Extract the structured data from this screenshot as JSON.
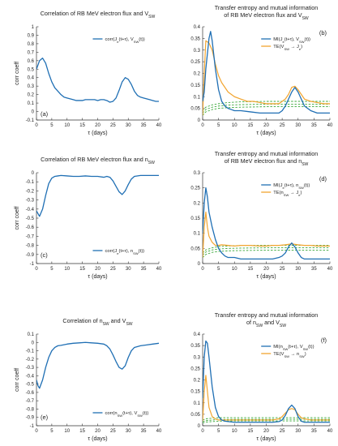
{
  "figure": {
    "x_axis_label": "τ (days)",
    "y_axis_label": "corr coeff",
    "x_ticks": [
      0,
      5,
      10,
      15,
      20,
      25,
      30,
      35,
      40
    ]
  },
  "colors": {
    "mi": "#1f6fb4",
    "te": "#f2a530",
    "threshold": "#3aa83a",
    "axis": "#333333"
  },
  "chart_data": [
    {
      "id": "a",
      "tag": "(a)",
      "type": "line",
      "title": "Correlation of RB MeV electron flux and V_SW",
      "xlabel": "τ (days)",
      "ylabel": "corr coeff",
      "xlim": [
        0,
        40
      ],
      "ylim": [
        -0.1,
        1
      ],
      "yticks": [
        -0.1,
        0,
        0.1,
        0.2,
        0.3,
        0.4,
        0.5,
        0.6,
        0.7,
        0.8,
        0.9,
        1
      ],
      "legend": "top-right",
      "series": [
        {
          "name": "corr(J_e(t+τ), V_SW(t))",
          "role": "corr",
          "x": [
            0,
            1,
            2,
            3,
            4,
            5,
            6,
            7,
            8,
            9,
            10,
            11,
            12,
            13,
            14,
            15,
            16,
            17,
            18,
            19,
            20,
            21,
            22,
            23,
            24,
            25,
            26,
            27,
            28,
            29,
            30,
            31,
            32,
            33,
            34,
            35,
            36,
            37,
            38,
            39,
            40
          ],
          "y": [
            0.5,
            0.6,
            0.63,
            0.57,
            0.45,
            0.35,
            0.28,
            0.24,
            0.2,
            0.17,
            0.16,
            0.15,
            0.14,
            0.13,
            0.13,
            0.13,
            0.14,
            0.14,
            0.14,
            0.14,
            0.13,
            0.14,
            0.14,
            0.13,
            0.11,
            0.12,
            0.16,
            0.25,
            0.35,
            0.4,
            0.38,
            0.32,
            0.24,
            0.19,
            0.17,
            0.16,
            0.15,
            0.14,
            0.13,
            0.12,
            0.12
          ]
        }
      ]
    },
    {
      "id": "b",
      "tag": "(b)",
      "type": "line",
      "title": "Transfer entropy and mutual information of RB MeV electron flux and V_SW",
      "xlabel": "τ (days)",
      "ylabel": "",
      "xlim": [
        0,
        40
      ],
      "ylim": [
        0,
        0.4
      ],
      "yticks": [
        0,
        0.05,
        0.1,
        0.15,
        0.2,
        0.25,
        0.3,
        0.35,
        0.4
      ],
      "legend": "top-right",
      "series": [
        {
          "name": "MI(J_e(t+τ), V_SW(t))",
          "role": "mi",
          "x": [
            0,
            0.5,
            1,
            2,
            2.5,
            3,
            4,
            5,
            6,
            7,
            8,
            9,
            10,
            12,
            15,
            18,
            20,
            22,
            24,
            25,
            26,
            27,
            28,
            29,
            30,
            31,
            32,
            34,
            36,
            38,
            40
          ],
          "y": [
            0.08,
            0.12,
            0.22,
            0.35,
            0.38,
            0.34,
            0.22,
            0.13,
            0.08,
            0.06,
            0.05,
            0.045,
            0.04,
            0.04,
            0.035,
            0.03,
            0.03,
            0.03,
            0.03,
            0.04,
            0.06,
            0.09,
            0.12,
            0.14,
            0.12,
            0.09,
            0.06,
            0.04,
            0.03,
            0.03,
            0.03
          ]
        },
        {
          "name": "TE(V_SW → J_e)",
          "role": "te",
          "x": [
            0,
            0.5,
            1,
            2,
            3,
            4,
            5,
            6,
            7,
            8,
            10,
            12,
            14,
            16,
            18,
            20,
            22,
            24,
            25,
            26,
            27,
            28,
            29,
            30,
            31,
            32,
            34,
            36,
            38,
            40
          ],
          "y": [
            0.02,
            0.2,
            0.34,
            0.33,
            0.3,
            0.24,
            0.19,
            0.16,
            0.14,
            0.12,
            0.1,
            0.09,
            0.08,
            0.08,
            0.075,
            0.07,
            0.07,
            0.07,
            0.08,
            0.09,
            0.11,
            0.14,
            0.145,
            0.13,
            0.11,
            0.09,
            0.08,
            0.075,
            0.07,
            0.07
          ]
        },
        {
          "name": "",
          "role": "threshold",
          "x": [
            0,
            1,
            3,
            5,
            8,
            12,
            20,
            30,
            40
          ],
          "y": [
            0.04,
            0.055,
            0.065,
            0.07,
            0.075,
            0.078,
            0.08,
            0.08,
            0.08
          ]
        },
        {
          "name": "",
          "role": "threshold",
          "x": [
            0,
            1,
            3,
            5,
            8,
            12,
            20,
            30,
            40
          ],
          "y": [
            0.03,
            0.045,
            0.055,
            0.06,
            0.064,
            0.066,
            0.068,
            0.068,
            0.068
          ]
        },
        {
          "name": "",
          "role": "threshold",
          "x": [
            0,
            1,
            3,
            5,
            8,
            12,
            20,
            30,
            40
          ],
          "y": [
            0.02,
            0.035,
            0.045,
            0.05,
            0.053,
            0.055,
            0.057,
            0.057,
            0.057
          ]
        }
      ]
    },
    {
      "id": "c",
      "tag": "(c)",
      "type": "line",
      "title": "Correlation of RB MeV electron flux and n_SW",
      "xlabel": "τ (days)",
      "ylabel": "corr coeff",
      "xlim": [
        0,
        40
      ],
      "ylim": [
        -1,
        0
      ],
      "yticks": [
        -1,
        -0.9,
        -0.8,
        -0.7,
        -0.6,
        -0.5,
        -0.4,
        -0.3,
        -0.2,
        -0.1,
        0
      ],
      "legend": "bottom-right",
      "series": [
        {
          "name": "corr(J_e(t+τ), n_SW(t))",
          "role": "corr",
          "x": [
            0,
            1,
            2,
            3,
            4,
            5,
            6,
            7,
            8,
            10,
            12,
            14,
            16,
            18,
            20,
            22,
            23,
            24,
            25,
            26,
            27,
            28,
            29,
            30,
            31,
            32,
            34,
            36,
            38,
            40
          ],
          "y": [
            -0.42,
            -0.48,
            -0.4,
            -0.25,
            -0.12,
            -0.06,
            -0.04,
            -0.035,
            -0.03,
            -0.035,
            -0.04,
            -0.04,
            -0.035,
            -0.04,
            -0.04,
            -0.05,
            -0.04,
            -0.05,
            -0.09,
            -0.15,
            -0.21,
            -0.24,
            -0.2,
            -0.13,
            -0.07,
            -0.04,
            -0.03,
            -0.03,
            -0.03,
            -0.03
          ]
        }
      ]
    },
    {
      "id": "d",
      "tag": "(d)",
      "type": "line",
      "title": "Transfer entropy and mutual information of RB MeV electron flux and n_SW",
      "xlabel": "τ (days)",
      "ylabel": "",
      "xlim": [
        0,
        40
      ],
      "ylim": [
        0,
        0.3
      ],
      "yticks": [
        0,
        0.05,
        0.1,
        0.15,
        0.2,
        0.25,
        0.3
      ],
      "legend": "top-right",
      "series": [
        {
          "name": "MI(J_e(t+τ), n_SW(t))",
          "role": "mi",
          "x": [
            0,
            0.5,
            1,
            1.5,
            2,
            3,
            4,
            5,
            6,
            7,
            8,
            10,
            12,
            15,
            18,
            20,
            22,
            24,
            25,
            26,
            27,
            28,
            29,
            30,
            31,
            32,
            34,
            36,
            38,
            40
          ],
          "y": [
            0.1,
            0.2,
            0.25,
            0.22,
            0.17,
            0.12,
            0.08,
            0.05,
            0.035,
            0.025,
            0.02,
            0.02,
            0.015,
            0.015,
            0.015,
            0.015,
            0.015,
            0.02,
            0.025,
            0.035,
            0.055,
            0.068,
            0.055,
            0.035,
            0.02,
            0.015,
            0.015,
            0.015,
            0.015,
            0.015
          ]
        },
        {
          "name": "TE(n_SW → J_e)",
          "role": "te",
          "x": [
            0,
            0.5,
            1,
            1.5,
            2,
            3,
            4,
            5,
            6,
            8,
            10,
            12,
            15,
            18,
            20,
            22,
            24,
            26,
            28,
            30,
            32,
            34,
            36,
            38,
            40
          ],
          "y": [
            0.02,
            0.12,
            0.17,
            0.12,
            0.09,
            0.07,
            0.06,
            0.06,
            0.062,
            0.06,
            0.058,
            0.06,
            0.06,
            0.058,
            0.058,
            0.06,
            0.06,
            0.062,
            0.065,
            0.062,
            0.06,
            0.06,
            0.058,
            0.058,
            0.058
          ]
        },
        {
          "name": "",
          "role": "threshold",
          "x": [
            0,
            1,
            3,
            5,
            8,
            12,
            20,
            30,
            40
          ],
          "y": [
            0.035,
            0.045,
            0.052,
            0.056,
            0.058,
            0.06,
            0.06,
            0.06,
            0.06
          ]
        },
        {
          "name": "",
          "role": "threshold",
          "x": [
            0,
            1,
            3,
            5,
            8,
            12,
            20,
            30,
            40
          ],
          "y": [
            0.028,
            0.038,
            0.045,
            0.048,
            0.05,
            0.051,
            0.052,
            0.052,
            0.052
          ]
        },
        {
          "name": "",
          "role": "threshold",
          "x": [
            0,
            1,
            3,
            5,
            8,
            12,
            20,
            30,
            40
          ],
          "y": [
            0.02,
            0.03,
            0.037,
            0.04,
            0.042,
            0.043,
            0.044,
            0.044,
            0.044
          ]
        }
      ]
    },
    {
      "id": "e",
      "tag": "(e)",
      "type": "line",
      "title": "Correlation of n_SW and V_SW",
      "xlabel": "τ (days)",
      "ylabel": "corr coeff",
      "xlim": [
        0,
        40
      ],
      "ylim": [
        -1,
        0.1
      ],
      "yticks": [
        -1,
        -0.9,
        -0.8,
        -0.7,
        -0.6,
        -0.5,
        -0.4,
        -0.3,
        -0.2,
        -0.1,
        0,
        0.1
      ],
      "legend": "bottom-right",
      "series": [
        {
          "name": "corr(n_SW(t+τ), V_SW(t))",
          "role": "corr",
          "x": [
            0,
            0.5,
            1,
            2,
            3,
            4,
            5,
            6,
            7,
            8,
            10,
            12,
            14,
            16,
            18,
            20,
            22,
            23,
            24,
            25,
            26,
            27,
            28,
            29,
            30,
            31,
            32,
            34,
            36,
            38,
            40
          ],
          "y": [
            -0.45,
            -0.52,
            -0.55,
            -0.45,
            -0.3,
            -0.18,
            -0.1,
            -0.06,
            -0.04,
            -0.035,
            -0.02,
            -0.01,
            -0.005,
            0,
            -0.005,
            -0.01,
            -0.02,
            -0.04,
            -0.08,
            -0.15,
            -0.23,
            -0.3,
            -0.32,
            -0.28,
            -0.18,
            -0.1,
            -0.06,
            -0.04,
            -0.03,
            -0.02,
            -0.01
          ]
        }
      ]
    },
    {
      "id": "f",
      "tag": "(f)",
      "type": "line",
      "title": "Transfer entropy and mutual information of n_SW and V_SW",
      "xlabel": "τ (days)",
      "ylabel": "",
      "xlim": [
        0,
        40
      ],
      "ylim": [
        0,
        0.4
      ],
      "yticks": [
        0,
        0.05,
        0.1,
        0.15,
        0.2,
        0.25,
        0.3,
        0.35,
        0.4
      ],
      "legend": "top-right",
      "series": [
        {
          "name": "MI(n_SW(t+τ), V_SW(t))",
          "role": "mi",
          "x": [
            0,
            0.5,
            1,
            1.5,
            2,
            3,
            4,
            5,
            6,
            7,
            8,
            10,
            12,
            15,
            18,
            20,
            22,
            24,
            25,
            26,
            27,
            28,
            29,
            30,
            31,
            32,
            34,
            36,
            38,
            40
          ],
          "y": [
            0.12,
            0.3,
            0.37,
            0.36,
            0.3,
            0.17,
            0.08,
            0.04,
            0.025,
            0.02,
            0.018,
            0.015,
            0.015,
            0.015,
            0.015,
            0.015,
            0.015,
            0.018,
            0.025,
            0.045,
            0.075,
            0.09,
            0.075,
            0.04,
            0.02,
            0.015,
            0.015,
            0.015,
            0.015,
            0.015
          ]
        },
        {
          "name": "TE(V_SW → n_SW)",
          "role": "te",
          "x": [
            0,
            0.5,
            1,
            1.5,
            2,
            3,
            4,
            5,
            6,
            8,
            10,
            12,
            15,
            18,
            20,
            22,
            24,
            25,
            26,
            27,
            28,
            29,
            30,
            31,
            32,
            34,
            36,
            38,
            40
          ],
          "y": [
            0.02,
            0.15,
            0.22,
            0.15,
            0.08,
            0.04,
            0.03,
            0.025,
            0.025,
            0.025,
            0.025,
            0.025,
            0.025,
            0.025,
            0.025,
            0.025,
            0.03,
            0.04,
            0.055,
            0.07,
            0.075,
            0.07,
            0.05,
            0.035,
            0.03,
            0.025,
            0.025,
            0.025,
            0.025
          ]
        },
        {
          "name": "",
          "role": "threshold",
          "x": [
            0,
            1,
            3,
            5,
            10,
            20,
            30,
            40
          ],
          "y": [
            0.025,
            0.03,
            0.033,
            0.035,
            0.035,
            0.035,
            0.035,
            0.035
          ]
        },
        {
          "name": "",
          "role": "threshold",
          "x": [
            0,
            1,
            3,
            5,
            10,
            20,
            30,
            40
          ],
          "y": [
            0.018,
            0.022,
            0.025,
            0.027,
            0.028,
            0.028,
            0.028,
            0.028
          ]
        },
        {
          "name": "",
          "role": "threshold",
          "x": [
            0,
            1,
            3,
            5,
            10,
            20,
            30,
            40
          ],
          "y": [
            0.012,
            0.016,
            0.018,
            0.02,
            0.021,
            0.021,
            0.021,
            0.021
          ]
        }
      ]
    }
  ]
}
